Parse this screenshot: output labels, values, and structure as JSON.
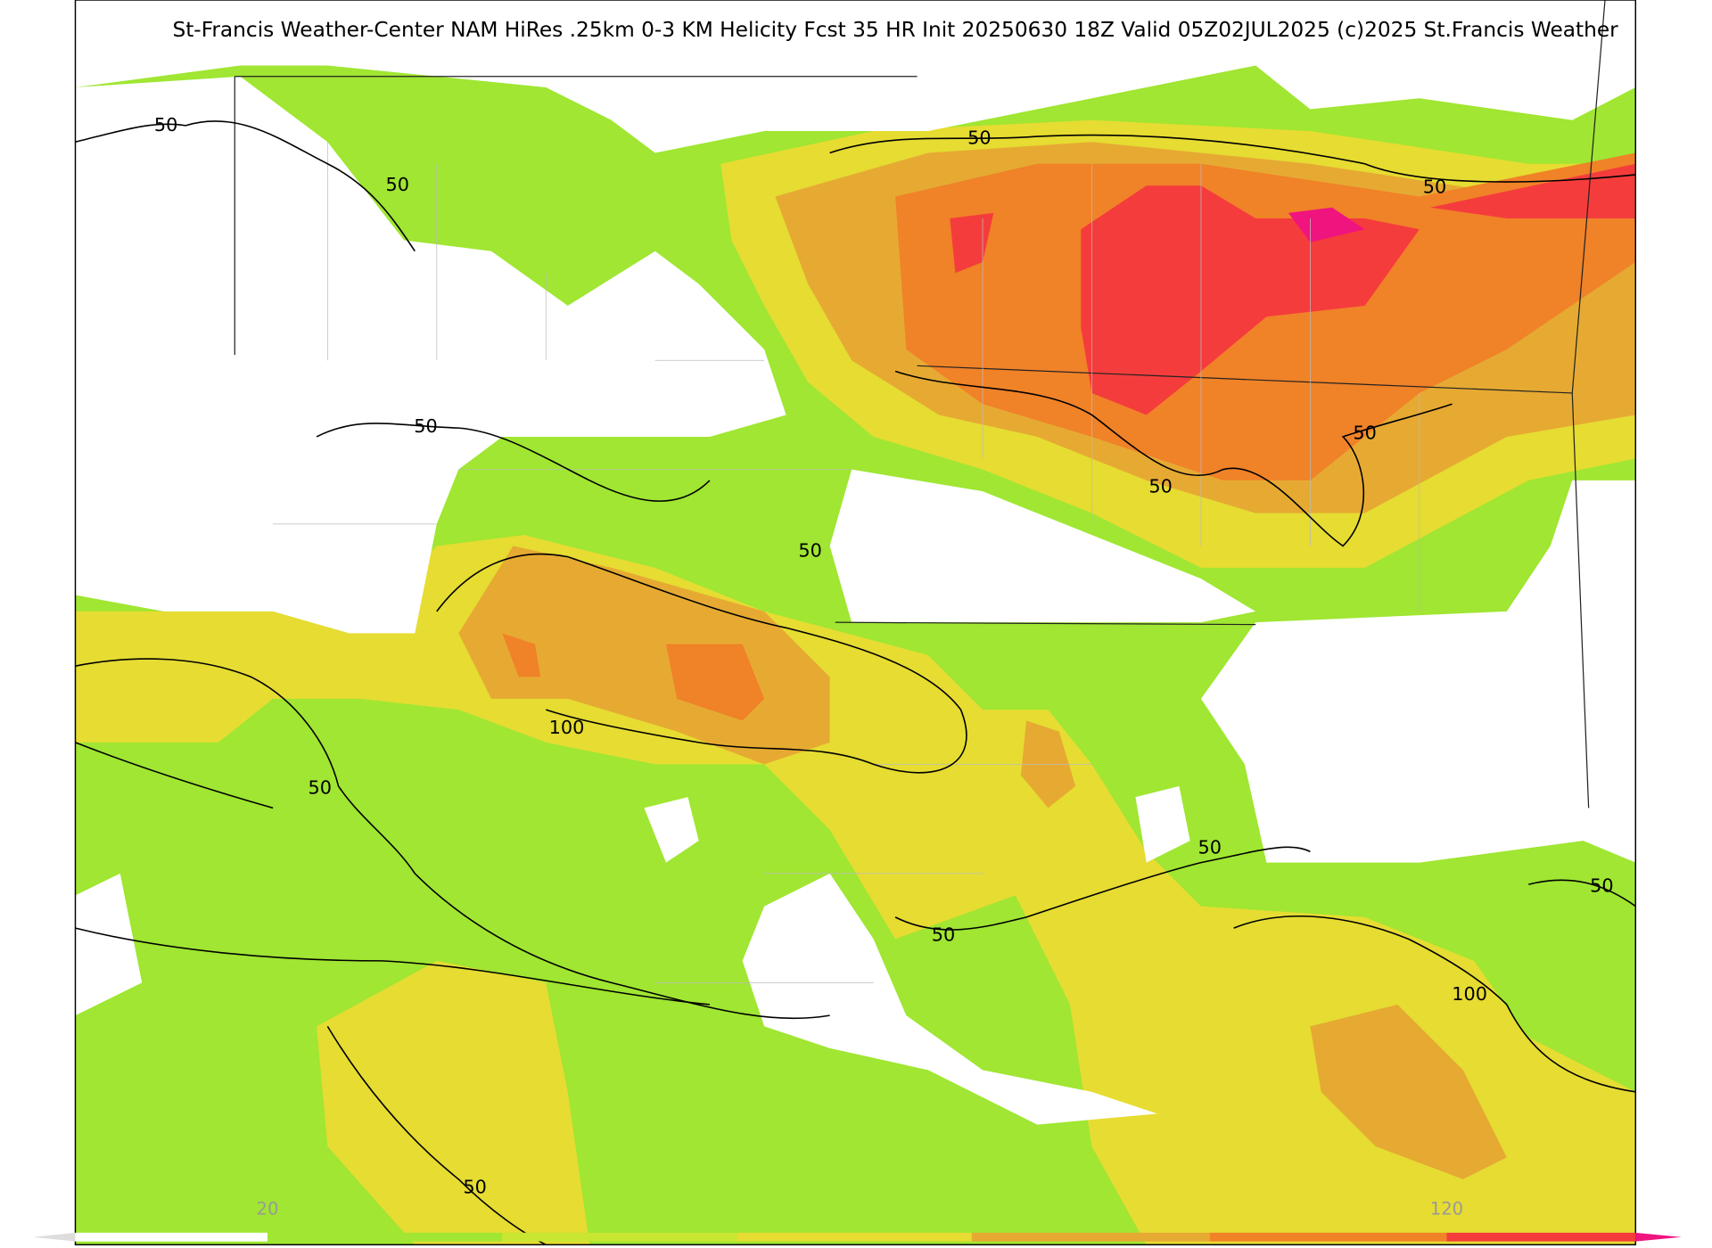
{
  "title": "St-Francis Weather-Center NAM HiRes .25km 0-3 KM Helicity Fcst 35 HR Init 20250630 18Z  Valid 05Z02JUL2025    (c)2025 St.Francis Weather",
  "contour_labels": [
    50,
    50,
    50,
    50,
    50,
    50,
    50,
    50,
    100,
    50,
    50,
    50,
    50,
    100,
    50
  ],
  "colorbar": {
    "labels": [
      "20",
      "120"
    ],
    "colors": [
      "#ffffff",
      "#a0e632",
      "#c8e632",
      "#e6dc32",
      "#e6aa32",
      "#f08228",
      "#f53c3c",
      "#f0147f"
    ]
  }
}
